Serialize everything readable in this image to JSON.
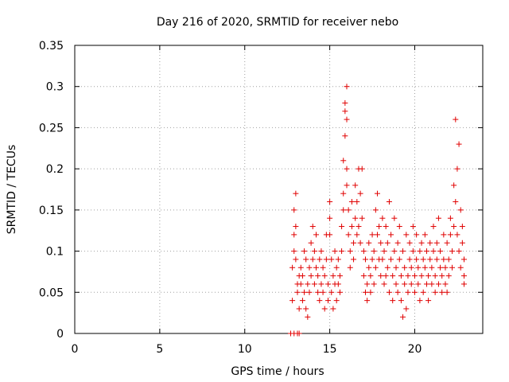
{
  "chart_data": {
    "type": "scatter",
    "title": "Day 216 of 2020, SRMTID for receiver nebo",
    "xlabel": "GPS time / hours",
    "ylabel": "SRMTID / TECUs",
    "xlim": [
      0,
      24
    ],
    "ylim": [
      0,
      0.35
    ],
    "xticks": [
      0,
      5,
      10,
      15,
      20
    ],
    "xtick_labels": [
      "0",
      "5",
      "10",
      "15",
      "20"
    ],
    "yticks": [
      0,
      0.05,
      0.1,
      0.15,
      0.2,
      0.25,
      0.3,
      0.35
    ],
    "ytick_labels": [
      "0",
      "0.05",
      "0.1",
      "0.15",
      "0.2",
      "0.25",
      "0.3",
      "0.35"
    ],
    "grid": true,
    "marker": "+",
    "color": "#e00000",
    "series": [
      {
        "name": "SRMTID",
        "points": [
          [
            12.7,
            0.0
          ],
          [
            12.9,
            0.0
          ],
          [
            13.1,
            0.0
          ],
          [
            13.2,
            0.0
          ],
          [
            12.8,
            0.04
          ],
          [
            12.8,
            0.08
          ],
          [
            12.9,
            0.1
          ],
          [
            12.9,
            0.12
          ],
          [
            12.9,
            0.15
          ],
          [
            13.0,
            0.17
          ],
          [
            13.0,
            0.13
          ],
          [
            13.0,
            0.09
          ],
          [
            13.1,
            0.06
          ],
          [
            13.1,
            0.05
          ],
          [
            13.2,
            0.03
          ],
          [
            13.2,
            0.07
          ],
          [
            13.3,
            0.06
          ],
          [
            13.3,
            0.08
          ],
          [
            13.4,
            0.07
          ],
          [
            13.4,
            0.04
          ],
          [
            13.5,
            0.1
          ],
          [
            13.5,
            0.05
          ],
          [
            13.6,
            0.03
          ],
          [
            13.6,
            0.09
          ],
          [
            13.7,
            0.06
          ],
          [
            13.7,
            0.02
          ],
          [
            13.8,
            0.08
          ],
          [
            13.8,
            0.05
          ],
          [
            13.9,
            0.11
          ],
          [
            13.9,
            0.07
          ],
          [
            14.0,
            0.13
          ],
          [
            14.0,
            0.09
          ],
          [
            14.1,
            0.06
          ],
          [
            14.1,
            0.1
          ],
          [
            14.2,
            0.08
          ],
          [
            14.2,
            0.12
          ],
          [
            14.3,
            0.05
          ],
          [
            14.3,
            0.07
          ],
          [
            14.4,
            0.09
          ],
          [
            14.4,
            0.04
          ],
          [
            14.5,
            0.06
          ],
          [
            14.5,
            0.1
          ],
          [
            14.6,
            0.08
          ],
          [
            14.6,
            0.05
          ],
          [
            14.7,
            0.03
          ],
          [
            14.7,
            0.07
          ],
          [
            14.8,
            0.12
          ],
          [
            14.8,
            0.09
          ],
          [
            14.9,
            0.06
          ],
          [
            14.9,
            0.04
          ],
          [
            15.0,
            0.16
          ],
          [
            15.0,
            0.14
          ],
          [
            15.0,
            0.12
          ],
          [
            15.1,
            0.09
          ],
          [
            15.1,
            0.05
          ],
          [
            15.2,
            0.07
          ],
          [
            15.2,
            0.03
          ],
          [
            15.3,
            0.06
          ],
          [
            15.3,
            0.1
          ],
          [
            15.4,
            0.08
          ],
          [
            15.4,
            0.04
          ],
          [
            15.5,
            0.06
          ],
          [
            15.5,
            0.09
          ],
          [
            15.6,
            0.05
          ],
          [
            15.6,
            0.07
          ],
          [
            15.7,
            0.1
          ],
          [
            15.7,
            0.13
          ],
          [
            15.8,
            0.15
          ],
          [
            15.8,
            0.17
          ],
          [
            15.8,
            0.21
          ],
          [
            15.9,
            0.24
          ],
          [
            15.9,
            0.27
          ],
          [
            15.9,
            0.28
          ],
          [
            16.0,
            0.3
          ],
          [
            16.0,
            0.26
          ],
          [
            16.0,
            0.2
          ],
          [
            16.0,
            0.18
          ],
          [
            16.1,
            0.15
          ],
          [
            16.1,
            0.12
          ],
          [
            16.2,
            0.1
          ],
          [
            16.2,
            0.08
          ],
          [
            16.3,
            0.13
          ],
          [
            16.3,
            0.16
          ],
          [
            16.4,
            0.11
          ],
          [
            16.4,
            0.09
          ],
          [
            16.5,
            0.14
          ],
          [
            16.5,
            0.18
          ],
          [
            16.6,
            0.12
          ],
          [
            16.6,
            0.16
          ],
          [
            16.7,
            0.2
          ],
          [
            16.7,
            0.13
          ],
          [
            16.8,
            0.17
          ],
          [
            16.8,
            0.11
          ],
          [
            16.9,
            0.2
          ],
          [
            16.9,
            0.14
          ],
          [
            17.0,
            0.1
          ],
          [
            17.0,
            0.07
          ],
          [
            17.1,
            0.05
          ],
          [
            17.1,
            0.09
          ],
          [
            17.2,
            0.06
          ],
          [
            17.2,
            0.04
          ],
          [
            17.3,
            0.08
          ],
          [
            17.3,
            0.11
          ],
          [
            17.4,
            0.07
          ],
          [
            17.4,
            0.05
          ],
          [
            17.5,
            0.09
          ],
          [
            17.5,
            0.12
          ],
          [
            17.6,
            0.1
          ],
          [
            17.6,
            0.06
          ],
          [
            17.7,
            0.15
          ],
          [
            17.7,
            0.08
          ],
          [
            17.8,
            0.12
          ],
          [
            17.8,
            0.17
          ],
          [
            17.9,
            0.09
          ],
          [
            17.9,
            0.13
          ],
          [
            18.0,
            0.07
          ],
          [
            18.0,
            0.11
          ],
          [
            18.1,
            0.14
          ],
          [
            18.1,
            0.09
          ],
          [
            18.2,
            0.06
          ],
          [
            18.2,
            0.1
          ],
          [
            18.3,
            0.13
          ],
          [
            18.3,
            0.07
          ],
          [
            18.4,
            0.11
          ],
          [
            18.4,
            0.08
          ],
          [
            18.5,
            0.05
          ],
          [
            18.5,
            0.16
          ],
          [
            18.6,
            0.09
          ],
          [
            18.6,
            0.12
          ],
          [
            18.7,
            0.07
          ],
          [
            18.7,
            0.04
          ],
          [
            18.8,
            0.1
          ],
          [
            18.8,
            0.14
          ],
          [
            18.9,
            0.08
          ],
          [
            18.9,
            0.06
          ],
          [
            19.0,
            0.11
          ],
          [
            19.0,
            0.05
          ],
          [
            19.1,
            0.09
          ],
          [
            19.1,
            0.13
          ],
          [
            19.2,
            0.07
          ],
          [
            19.2,
            0.04
          ],
          [
            19.3,
            0.02
          ],
          [
            19.3,
            0.1
          ],
          [
            19.4,
            0.06
          ],
          [
            19.4,
            0.08
          ],
          [
            19.5,
            0.03
          ],
          [
            19.5,
            0.12
          ],
          [
            19.6,
            0.07
          ],
          [
            19.6,
            0.05
          ],
          [
            19.7,
            0.09
          ],
          [
            19.7,
            0.11
          ],
          [
            19.8,
            0.06
          ],
          [
            19.8,
            0.08
          ],
          [
            19.9,
            0.13
          ],
          [
            19.9,
            0.1
          ],
          [
            20.0,
            0.07
          ],
          [
            20.0,
            0.05
          ],
          [
            20.1,
            0.09
          ],
          [
            20.1,
            0.12
          ],
          [
            20.2,
            0.08
          ],
          [
            20.2,
            0.06
          ],
          [
            20.3,
            0.1
          ],
          [
            20.3,
            0.04
          ],
          [
            20.4,
            0.07
          ],
          [
            20.4,
            0.11
          ],
          [
            20.5,
            0.09
          ],
          [
            20.5,
            0.05
          ],
          [
            20.6,
            0.12
          ],
          [
            20.6,
            0.08
          ],
          [
            20.7,
            0.06
          ],
          [
            20.7,
            0.1
          ],
          [
            20.8,
            0.07
          ],
          [
            20.8,
            0.04
          ],
          [
            20.9,
            0.09
          ],
          [
            20.9,
            0.11
          ],
          [
            21.0,
            0.08
          ],
          [
            21.0,
            0.06
          ],
          [
            21.1,
            0.13
          ],
          [
            21.1,
            0.1
          ],
          [
            21.2,
            0.07
          ],
          [
            21.2,
            0.05
          ],
          [
            21.3,
            0.09
          ],
          [
            21.3,
            0.11
          ],
          [
            21.4,
            0.06
          ],
          [
            21.4,
            0.14
          ],
          [
            21.5,
            0.08
          ],
          [
            21.5,
            0.1
          ],
          [
            21.6,
            0.07
          ],
          [
            21.6,
            0.05
          ],
          [
            21.7,
            0.09
          ],
          [
            21.7,
            0.12
          ],
          [
            21.8,
            0.06
          ],
          [
            21.8,
            0.08
          ],
          [
            21.9,
            0.11
          ],
          [
            21.9,
            0.05
          ],
          [
            22.0,
            0.09
          ],
          [
            22.0,
            0.07
          ],
          [
            22.1,
            0.12
          ],
          [
            22.1,
            0.14
          ],
          [
            22.2,
            0.1
          ],
          [
            22.2,
            0.08
          ],
          [
            22.3,
            0.18
          ],
          [
            22.3,
            0.13
          ],
          [
            22.4,
            0.26
          ],
          [
            22.4,
            0.16
          ],
          [
            22.5,
            0.2
          ],
          [
            22.5,
            0.12
          ],
          [
            22.6,
            0.23
          ],
          [
            22.6,
            0.1
          ],
          [
            22.7,
            0.15
          ],
          [
            22.7,
            0.08
          ],
          [
            22.8,
            0.13
          ],
          [
            22.8,
            0.11
          ],
          [
            22.9,
            0.07
          ],
          [
            22.9,
            0.09
          ],
          [
            22.9,
            0.06
          ]
        ]
      }
    ]
  }
}
